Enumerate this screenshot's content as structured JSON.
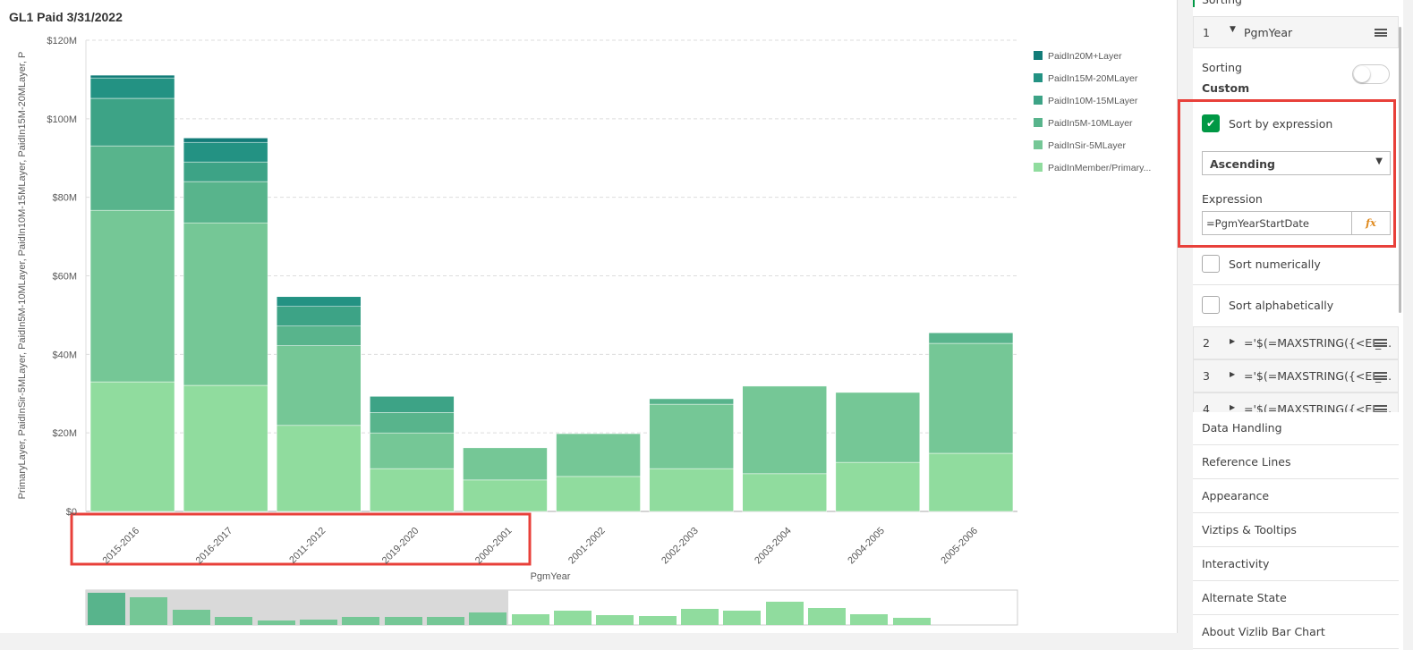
{
  "chart_data": {
    "type": "bar",
    "stacked": true,
    "title": "GL1 Paid 3/31/2022",
    "y_label": "PrimaryLayer,  PaidInSir-5MLayer,  PaidIn5M-10MLayer,  PaidIn10M-15MLayer,  PaidIn15M-20MLayer,  P",
    "x_label": "PgmYear",
    "categories": [
      "2015-2016",
      "2016-2017",
      "2011-2012",
      "2019-2020",
      "2000-2001",
      "2001-2002",
      "2002-2003",
      "2003-2004",
      "2004-2005",
      "2005-2006"
    ],
    "series": [
      {
        "name": "PaidInMember/Primary...",
        "color": "#90dc9e",
        "values": [
          33.0,
          32.1,
          21.9,
          10.9,
          8.0,
          8.9,
          10.9,
          9.6,
          12.5,
          14.8
        ]
      },
      {
        "name": "PaidInSir-5MLayer",
        "color": "#75c796",
        "values": [
          43.7,
          41.4,
          20.3,
          9.1,
          8.2,
          10.9,
          16.4,
          22.3,
          17.8,
          28.0
        ]
      },
      {
        "name": "PaidIn5M-10MLayer",
        "color": "#58b48c",
        "values": [
          16.4,
          10.5,
          5.0,
          5.2,
          0,
          0,
          1.4,
          0,
          0,
          2.7
        ]
      },
      {
        "name": "PaidIn10M-15MLayer",
        "color": "#3da386",
        "values": [
          12.1,
          5.0,
          5.0,
          4.1,
          0,
          0,
          0,
          0,
          0,
          0
        ]
      },
      {
        "name": "PaidIn15M-20MLayer",
        "color": "#239283",
        "values": [
          5.2,
          5.0,
          2.5,
          0,
          0,
          0,
          0,
          0,
          0,
          0
        ]
      },
      {
        "name": "PaidIn20M+Layer",
        "color": "#127c78",
        "values": [
          0.7,
          1.1,
          0,
          0,
          0,
          0,
          0,
          0,
          0,
          0
        ]
      }
    ],
    "ylim": [
      0,
      120
    ],
    "yticks": [
      {
        "value": 0,
        "label": "$0"
      },
      {
        "value": 20,
        "label": "$20M"
      },
      {
        "value": 40,
        "label": "$40M"
      },
      {
        "value": 60,
        "label": "$60M"
      },
      {
        "value": 80,
        "label": "$80M"
      },
      {
        "value": 100,
        "label": "$100M"
      },
      {
        "value": 120,
        "label": "$120M"
      }
    ],
    "grid": true,
    "legend": "right"
  },
  "panel": {
    "header": "Sorting",
    "item_number": "1",
    "item_name": "PgmYear",
    "sorting_label": "Sorting",
    "sorting_value": "Custom",
    "sort_by_expression": "Sort by expression",
    "order": "Ascending",
    "expression_label": "Expression",
    "expression": "=PgmYearStartDate",
    "fx": "fx",
    "sort_numerically": "Sort numerically",
    "sort_alphabetically": "Sort alphabetically",
    "other_items": [
      {
        "number": "2",
        "name": "='$(=MAXSTRING({<EI_..."
      },
      {
        "number": "3",
        "name": "='$(=MAXSTRING({<EI_..."
      },
      {
        "number": "4",
        "name": "='$(=MAXSTRING({<EI_..."
      }
    ],
    "sections": [
      "Data Handling",
      "Reference Lines",
      "Appearance",
      "Viztips & Tooltips",
      "Interactivity",
      "Alternate State",
      "About Vizlib Bar Chart"
    ]
  }
}
